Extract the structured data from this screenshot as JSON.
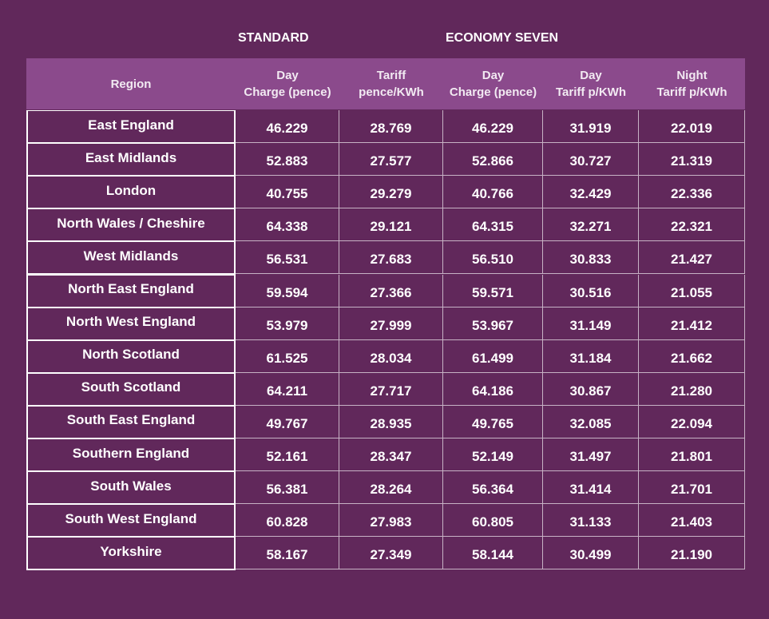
{
  "groups": [
    "STANDARD",
    "ECONOMY SEVEN"
  ],
  "table": {
    "columns": [
      [
        "Region"
      ],
      [
        "Day",
        "Charge (pence)"
      ],
      [
        "Tariff",
        "pence/KWh"
      ],
      [
        "Day",
        "Charge (pence)"
      ],
      [
        "Day",
        "Tariff p/KWh"
      ],
      [
        "Night",
        "Tariff p/KWh"
      ]
    ],
    "rows": [
      [
        "East England",
        "46.229",
        "28.769",
        "46.229",
        "31.919",
        "22.019"
      ],
      [
        "East Midlands",
        "52.883",
        "27.577",
        "52.866",
        "30.727",
        "21.319"
      ],
      [
        "London",
        "40.755",
        "29.279",
        "40.766",
        "32.429",
        "22.336"
      ],
      [
        "North Wales / Cheshire",
        "64.338",
        "29.121",
        "64.315",
        "32.271",
        "22.321"
      ],
      [
        "West Midlands",
        "56.531",
        "27.683",
        "56.510",
        "30.833",
        "21.427"
      ],
      [
        "North East England",
        "59.594",
        "27.366",
        "59.571",
        "30.516",
        "21.055"
      ],
      [
        "North West England",
        "53.979",
        "27.999",
        "53.967",
        "31.149",
        "21.412"
      ],
      [
        "North Scotland",
        "61.525",
        "28.034",
        "61.499",
        "31.184",
        "21.662"
      ],
      [
        "South Scotland",
        "64.211",
        "27.717",
        "64.186",
        "30.867",
        "21.280"
      ],
      [
        "South East England",
        "49.767",
        "28.935",
        "49.765",
        "32.085",
        "22.094"
      ],
      [
        "Southern England",
        "52.161",
        "28.347",
        "52.149",
        "31.497",
        "21.801"
      ],
      [
        "South Wales",
        "56.381",
        "28.264",
        "56.364",
        "31.414",
        "21.701"
      ],
      [
        "South West England",
        "60.828",
        "27.983",
        "60.805",
        "31.133",
        "21.403"
      ],
      [
        "Yorkshire",
        "58.167",
        "27.349",
        "58.144",
        "30.499",
        "21.190"
      ]
    ]
  }
}
